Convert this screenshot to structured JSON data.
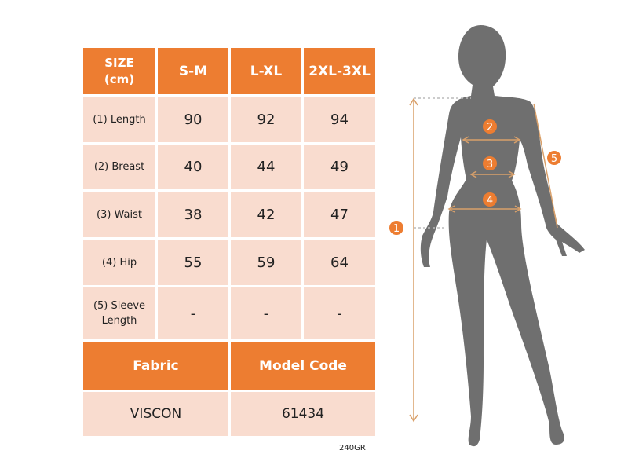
{
  "table": {
    "header": [
      "SIZE\n(cm)",
      "S-M",
      "L-XL",
      "2XL-3XL"
    ],
    "header_first_lines": [
      "SIZE",
      "(cm)"
    ],
    "rows": [
      {
        "label": "(1) Length",
        "values": [
          "90",
          "92",
          "94"
        ]
      },
      {
        "label": "(2) Breast",
        "values": [
          "40",
          "44",
          "49"
        ]
      },
      {
        "label": "(3) Waist",
        "values": [
          "38",
          "42",
          "47"
        ]
      },
      {
        "label": "(4) Hip",
        "values": [
          "55",
          "59",
          "64"
        ]
      },
      {
        "label_lines": [
          "(5) Sleeve",
          "Length"
        ],
        "values": [
          "-",
          "-",
          "-"
        ]
      }
    ],
    "fabric_label": "Fabric",
    "model_code_label": "Model Code",
    "fabric_value": "VISCON",
    "model_code_value": "61434"
  },
  "weight_note": "240GR",
  "figure": {
    "markers": [
      "1",
      "2",
      "3",
      "4",
      "5"
    ]
  },
  "colors": {
    "accent": "#ED7D31",
    "cell": "#F9DCCF",
    "silhouette": "#6F6F6F",
    "arrow": "#D9A06A"
  }
}
